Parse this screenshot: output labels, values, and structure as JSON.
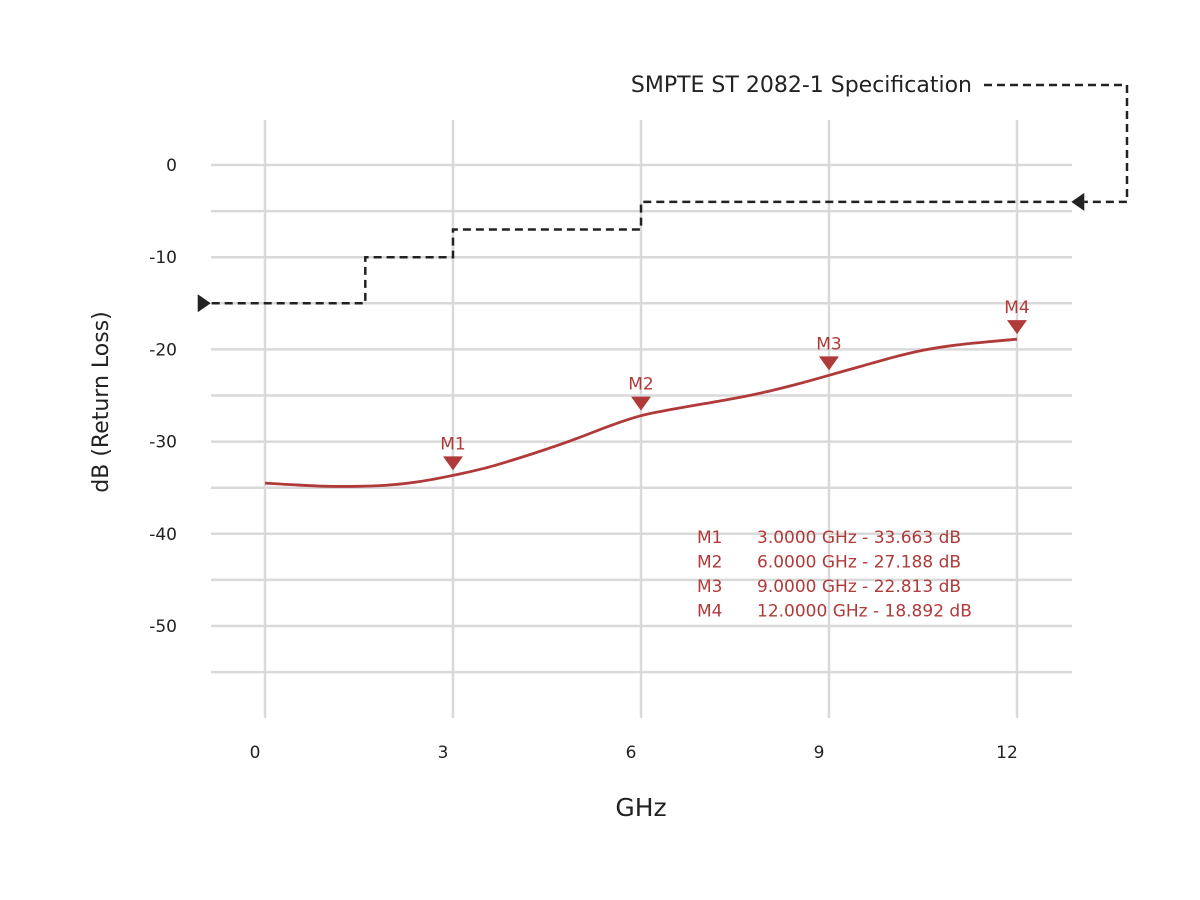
{
  "chart_data": {
    "type": "line",
    "xlabel": "GHz",
    "ylabel": "dB (Return Loss)",
    "xlim": [
      -0.85,
      12.85
    ],
    "ylim": [
      -60,
      5
    ],
    "x_ticks": [
      0,
      3,
      6,
      9,
      12
    ],
    "x_tick_labels": [
      "0",
      "3",
      "6",
      "9",
      "12"
    ],
    "y_ticks": [
      0,
      -10,
      -20,
      -30,
      -40,
      -50
    ],
    "y_tick_labels": [
      "0",
      "-10",
      "-20",
      "-30",
      "-40",
      "-50"
    ],
    "y_gridlines": [
      0,
      -5,
      -10,
      -15,
      -20,
      -25,
      -30,
      -35,
      -40,
      -45,
      -50,
      -55
    ],
    "grid": true,
    "colors": {
      "trace": "#b03a3a",
      "spec": "#222222",
      "grid": "#d9d9d9"
    },
    "series": [
      {
        "x": [
          0,
          0.5,
          1,
          1.5,
          2,
          2.5,
          3,
          3.5,
          4,
          4.5,
          5,
          5.5,
          6,
          6.5,
          7,
          7.5,
          8,
          8.5,
          9,
          9.5,
          10,
          10.5,
          11,
          11.5,
          12
        ],
        "values": [
          -34.5,
          -34.7,
          -34.85,
          -34.85,
          -34.7,
          -34.3,
          -33.663,
          -32.9,
          -31.9,
          -30.8,
          -29.6,
          -28.3,
          -27.188,
          -26.5,
          -25.9,
          -25.3,
          -24.6,
          -23.75,
          -22.813,
          -21.85,
          -20.9,
          -20.1,
          -19.55,
          -19.2,
          -18.892
        ]
      },
      {
        "x": [
          -0.85,
          1.6,
          1.6,
          3.0,
          3.0,
          6.0,
          6.0,
          12.85
        ],
        "values": [
          -15,
          -15,
          -10,
          -10,
          -7,
          -7,
          -4,
          -4
        ]
      }
    ],
    "spec_label": "SMPTE ST 2082-1 Specification",
    "markers": [
      {
        "label": "M1",
        "x": 3,
        "y": -33.663
      },
      {
        "label": "M2",
        "x": 6,
        "y": -27.188
      },
      {
        "label": "M3",
        "x": 9,
        "y": -22.813
      },
      {
        "label": "M4",
        "x": 12,
        "y": -18.892
      }
    ],
    "marker_readout": [
      {
        "marker": "M1",
        "text": "3.0000 GHz - 33.663 dB"
      },
      {
        "marker": "M2",
        "text": "6.0000 GHz - 27.188 dB"
      },
      {
        "marker": "M3",
        "text": "9.0000 GHz - 22.813 dB"
      },
      {
        "marker": "M4",
        "text": "12.0000 GHz - 18.892 dB"
      }
    ]
  }
}
